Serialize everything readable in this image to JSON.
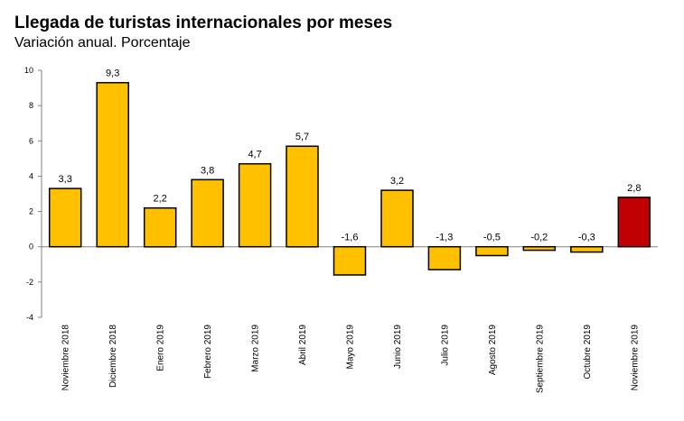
{
  "chart_data": {
    "type": "bar",
    "title": "Llegada de turistas internacionales por meses",
    "subtitle": "Variación anual. Porcentaje",
    "xlabel": "",
    "ylabel": "",
    "ylim": [
      -4,
      10
    ],
    "yticks": [
      10,
      8,
      6,
      4,
      2,
      0,
      -2,
      -4
    ],
    "grid": false,
    "legend": "none",
    "categories": [
      "Noviembre 2018",
      "Diciembre 2018",
      "Enero 2019",
      "Febrero 2019",
      "Marzo 2019",
      "Abril 2019",
      "Mayo 2019",
      "Junio 2019",
      "Julio 2019",
      "Agosto 2019",
      "Septiembre 2019",
      "Octubre 2019",
      "Noviembre 2019"
    ],
    "values": [
      3.3,
      9.3,
      2.2,
      3.8,
      4.7,
      5.7,
      -1.6,
      3.2,
      -1.3,
      -0.5,
      -0.2,
      -0.3,
      2.8
    ],
    "value_labels": [
      "3,3",
      "9,3",
      "2,2",
      "3,8",
      "4,7",
      "5,7",
      "-1,6",
      "3,2",
      "-1,3",
      "-0,5",
      "-0,2",
      "-0,3",
      "2,8"
    ],
    "colors": {
      "bar": "#FFC000",
      "highlight": "#C00000",
      "stroke": "#000000",
      "axis": "#808080"
    },
    "highlight_index": 12
  }
}
